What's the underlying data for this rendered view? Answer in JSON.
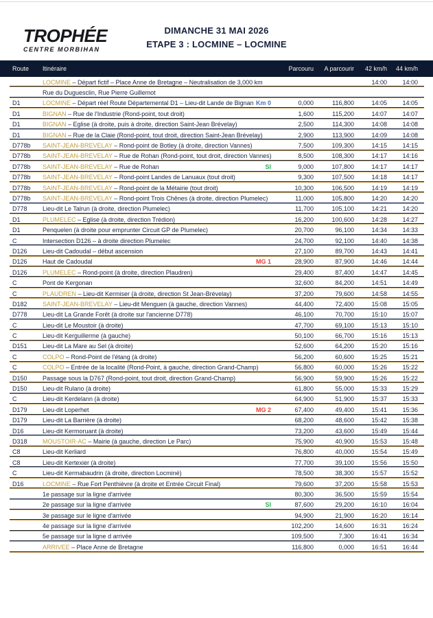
{
  "header": {
    "logo_title": "TROPHÉE",
    "logo_subtitle": "CENTRE MORBIHAN",
    "date_line": "DIMANCHE 31 MAI 2026",
    "stage_line": "ETAPE 3 : LOCMINE – LOCMINE"
  },
  "colors": {
    "header_bar_navy": "#0d1930",
    "text_navy": "#1a2440",
    "place_gold": "#bf9d3f",
    "separator_gold": "#d3ac63",
    "marker_km0_blue": "#4c74b5",
    "marker_si_green": "#2fb455",
    "marker_mg_red": "#f2392e"
  },
  "table": {
    "columns": [
      "Route",
      "Itinéraire",
      "Parcouru",
      "A parcourir",
      "42 km/h",
      "44 km/h"
    ],
    "rows": [
      {
        "route": "",
        "place": "LOCMINE",
        "text": " – Départ fictif – Place Anne de Bretagne – Neutralisation de 3,000 km",
        "marker": "",
        "marker_type": "",
        "parcouru": "",
        "a_parcourir": "",
        "t42": "14:00",
        "t44": "14:00"
      },
      {
        "route": "",
        "place": "",
        "text": "Rue du Duguesclin, Rue Pierre Guillemot",
        "marker": "",
        "marker_type": "",
        "parcouru": "",
        "a_parcourir": "",
        "t42": "",
        "t44": ""
      },
      {
        "route": "D1",
        "place": "LOCMINE",
        "text": " – Départ réel Route Départemental D1 – Lieu-dit Lande de Bignan",
        "marker": "Km 0",
        "marker_type": "km0",
        "parcouru": "0,000",
        "a_parcourir": "116,800",
        "t42": "14:05",
        "t44": "14:05"
      },
      {
        "route": "D1",
        "place": "BIGNAN",
        "text": " – Rue de l'Industrie (Rond-point, tout droit)",
        "marker": "",
        "marker_type": "",
        "parcouru": "1,600",
        "a_parcourir": "115,200",
        "t42": "14:07",
        "t44": "14:07"
      },
      {
        "route": "D1",
        "place": "BIGNAN",
        "text": " – Eglise (à droite, puis à droite, direction Saint-Jean Brévelay)",
        "marker": "",
        "marker_type": "",
        "parcouru": "2,500",
        "a_parcourir": "114,300",
        "t42": "14:08",
        "t44": "14:08"
      },
      {
        "route": "D1",
        "place": "BIGNAN",
        "text": " – Rue de la Claie (Rond-point, tout droit, direction Saint-Jean Brévelay)",
        "marker": "",
        "marker_type": "",
        "parcouru": "2,900",
        "a_parcourir": "113,900",
        "t42": "14:09",
        "t44": "14:08"
      },
      {
        "route": "D778b",
        "place": "SAINT-JEAN-BREVELAY",
        "text": " – Rond-point de Botley (à droite, direction Vannes)",
        "marker": "",
        "marker_type": "",
        "parcouru": "7,500",
        "a_parcourir": "109,300",
        "t42": "14:15",
        "t44": "14:15"
      },
      {
        "route": "D778b",
        "place": "SAINT-JEAN-BREVELAY",
        "text": " – Rue de Rohan (Rond-point, tout droit, direction Vannes)",
        "marker": "",
        "marker_type": "",
        "parcouru": "8,500",
        "a_parcourir": "108,300",
        "t42": "14:17",
        "t44": "14:16"
      },
      {
        "route": "D778b",
        "place": "SAINT-JEAN-BREVELAY",
        "text": " – Rue de Rohan",
        "marker": "SI",
        "marker_type": "si",
        "parcouru": "9,000",
        "a_parcourir": "107,800",
        "t42": "14:17",
        "t44": "14:17"
      },
      {
        "route": "D778b",
        "place": "SAINT-JEAN-BREVELAY",
        "text": " – Rond-point Landes de Lanuaux (tout droit)",
        "marker": "",
        "marker_type": "",
        "parcouru": "9,300",
        "a_parcourir": "107,500",
        "t42": "14:18",
        "t44": "14:17"
      },
      {
        "route": "D778b",
        "place": "SAINT-JEAN-BREVELAY",
        "text": " – Rond-point de la Métairie (tout droit)",
        "marker": "",
        "marker_type": "",
        "parcouru": "10,300",
        "a_parcourir": "106,500",
        "t42": "14:19",
        "t44": "14:19"
      },
      {
        "route": "D778b",
        "place": "SAINT-JEAN-BREVELAY",
        "text": " – Rond-point Trois Chênes (à droite, direction Plumelec)",
        "marker": "",
        "marker_type": "",
        "parcouru": "11,000",
        "a_parcourir": "105,800",
        "t42": "14:20",
        "t44": "14:20"
      },
      {
        "route": "D778",
        "place": "",
        "text": "Lieu-dit Le Talrun (à droite, direction Plumelec)",
        "marker": "",
        "marker_type": "",
        "parcouru": "11,700",
        "a_parcourir": "105,100",
        "t42": "14:21",
        "t44": "14:20"
      },
      {
        "route": "D1",
        "place": "PLUMELEC",
        "text": " – Eglise (à droite, direction Trédion)",
        "marker": "",
        "marker_type": "",
        "parcouru": "16,200",
        "a_parcourir": "100,600",
        "t42": "14:28",
        "t44": "14:27"
      },
      {
        "route": "D1",
        "place": "",
        "text": "Penquelen (à droite pour emprunter Circuit GP de Plumelec)",
        "marker": "",
        "marker_type": "",
        "parcouru": "20,700",
        "a_parcourir": "96,100",
        "t42": "14:34",
        "t44": "14:33"
      },
      {
        "route": "C",
        "place": "",
        "text": "Intersection D126 – à droite direction Plumelec",
        "marker": "",
        "marker_type": "",
        "parcouru": "24,700",
        "a_parcourir": "92,100",
        "t42": "14:40",
        "t44": "14:38"
      },
      {
        "route": "D126",
        "place": "",
        "text": "Lieu-dit Cadoudal – début ascension",
        "marker": "",
        "marker_type": "",
        "parcouru": "27,100",
        "a_parcourir": "89,700",
        "t42": "14:43",
        "t44": "14:41"
      },
      {
        "route": "D126",
        "place": "",
        "text": "Haut de Cadoudal",
        "marker": "MG 1",
        "marker_type": "mg",
        "parcouru": "28,900",
        "a_parcourir": "87,900",
        "t42": "14:46",
        "t44": "14:44"
      },
      {
        "route": "D126",
        "place": "PLUMELEC",
        "text": " – Rond-point (à droite, direction Plaudren)",
        "marker": "",
        "marker_type": "",
        "parcouru": "29,400",
        "a_parcourir": "87,400",
        "t42": "14:47",
        "t44": "14:45"
      },
      {
        "route": "C",
        "place": "",
        "text": "Pont de Kergonan",
        "marker": "",
        "marker_type": "",
        "parcouru": "32,600",
        "a_parcourir": "84,200",
        "t42": "14:51",
        "t44": "14:49"
      },
      {
        "route": "C",
        "place": "PLAUDREN",
        "text": " – Lieu-dit Kermiser (à droite, direction St Jean-Brévelay)",
        "marker": "",
        "marker_type": "",
        "parcouru": "37,200",
        "a_parcourir": "79,600",
        "t42": "14:58",
        "t44": "14:55"
      },
      {
        "route": "D182",
        "place": "SAINT-JEAN-BREVELAY",
        "text": " – Lieu-dit Menguen (à gauche, direction Vannes)",
        "marker": "",
        "marker_type": "",
        "parcouru": "44,400",
        "a_parcourir": "72,400",
        "t42": "15:08",
        "t44": "15:05"
      },
      {
        "route": "D778",
        "place": "",
        "text": "Lieu-dit La Grande Forêt (à droite sur l'ancienne D778)",
        "marker": "",
        "marker_type": "",
        "parcouru": "46,100",
        "a_parcourir": "70,700",
        "t42": "15:10",
        "t44": "15:07"
      },
      {
        "route": "C",
        "place": "",
        "text": "Lieu-dit Le Moustoir (à droite)",
        "marker": "",
        "marker_type": "",
        "parcouru": "47,700",
        "a_parcourir": "69,100",
        "t42": "15:13",
        "t44": "15:10"
      },
      {
        "route": "C",
        "place": "",
        "text": "Lieu-dit Kerguillerme (à gauche)",
        "marker": "",
        "marker_type": "",
        "parcouru": "50,100",
        "a_parcourir": "66,700",
        "t42": "15:16",
        "t44": "15:13"
      },
      {
        "route": "D151",
        "place": "",
        "text": "Lieu-dit La Mare au Sel (à droite)",
        "marker": "",
        "marker_type": "",
        "parcouru": "52,600",
        "a_parcourir": "64,200",
        "t42": "15:20",
        "t44": "15:16"
      },
      {
        "route": "C",
        "place": "COLPO",
        "text": " – Rond-Point de l'étang (à droite)",
        "marker": "",
        "marker_type": "",
        "parcouru": "56,200",
        "a_parcourir": "60,600",
        "t42": "15:25",
        "t44": "15:21"
      },
      {
        "route": "C",
        "place": "COLPO",
        "text": " – Entrée de la localité (Rond-Point, à gauche, direction Grand-Champ)",
        "marker": "",
        "marker_type": "",
        "parcouru": "56,800",
        "a_parcourir": "60,000",
        "t42": "15:26",
        "t44": "15:22"
      },
      {
        "route": "D150",
        "place": "",
        "text": "Passage sous la D767 (Rond-point, tout droit, direction Grand-Champ)",
        "marker": "",
        "marker_type": "",
        "parcouru": "56,900",
        "a_parcourir": "59,900",
        "t42": "15:26",
        "t44": "15:22"
      },
      {
        "route": "D150",
        "place": "",
        "text": "Lieu-dit Rulano (à droite)",
        "marker": "",
        "marker_type": "",
        "parcouru": "61,800",
        "a_parcourir": "55,000",
        "t42": "15:33",
        "t44": "15:29"
      },
      {
        "route": "C",
        "place": "",
        "text": "Lieu-dit Kerdelann (à droite)",
        "marker": "",
        "marker_type": "",
        "parcouru": "64,900",
        "a_parcourir": "51,900",
        "t42": "15:37",
        "t44": "15:33"
      },
      {
        "route": "D179",
        "place": "",
        "text": "Lieu-dit Loperhet",
        "marker": "MG 2",
        "marker_type": "mg",
        "parcouru": "67,400",
        "a_parcourir": "49,400",
        "t42": "15:41",
        "t44": "15:36"
      },
      {
        "route": "D179",
        "place": "",
        "text": "Lieu-dit La Barrière (à droite)",
        "marker": "",
        "marker_type": "",
        "parcouru": "68,200",
        "a_parcourir": "48,600",
        "t42": "15:42",
        "t44": "15:38"
      },
      {
        "route": "D16",
        "place": "",
        "text": "Lieu-dit Kermoruant (à droite)",
        "marker": "",
        "marker_type": "",
        "parcouru": "73,200",
        "a_parcourir": "43,600",
        "t42": "15:49",
        "t44": "15:44"
      },
      {
        "route": "D318",
        "place": "MOUSTOIR-AC",
        "text": " – Mairie (à gauche, direction Le Parc)",
        "marker": "",
        "marker_type": "",
        "parcouru": "75,900",
        "a_parcourir": "40,900",
        "t42": "15:53",
        "t44": "15:48"
      },
      {
        "route": "C8",
        "place": "",
        "text": "Lieu-dit Kerliard",
        "marker": "",
        "marker_type": "",
        "parcouru": "76,800",
        "a_parcourir": "40,000",
        "t42": "15:54",
        "t44": "15:49"
      },
      {
        "route": "C8",
        "place": "",
        "text": "Lieu-dit Kertexier (à droite)",
        "marker": "",
        "marker_type": "",
        "parcouru": "77,700",
        "a_parcourir": "39,100",
        "t42": "15:56",
        "t44": "15:50"
      },
      {
        "route": "C",
        "place": "",
        "text": "Lieu-dit Kermabaudrin (à droite, direction Locminé)",
        "marker": "",
        "marker_type": "",
        "parcouru": "78,500",
        "a_parcourir": "38,300",
        "t42": "15:57",
        "t44": "15:52"
      },
      {
        "route": "D16",
        "place": "LOCMINE",
        "text": " – Rue Fort Penthièvre (à droite et Entrée Circuit Final)",
        "marker": "",
        "marker_type": "",
        "parcouru": "79,600",
        "a_parcourir": "37,200",
        "t42": "15:58",
        "t44": "15:53"
      },
      {
        "route": "",
        "place": "",
        "text": "1e passage sur la ligne d'arrivée",
        "marker": "",
        "marker_type": "",
        "parcouru": "80,300",
        "a_parcourir": "36,500",
        "t42": "15:59",
        "t44": "15:54"
      },
      {
        "route": "",
        "place": "",
        "text": "2e passage sur la ligne d'arrivée",
        "marker": "SI",
        "marker_type": "si",
        "parcouru": "87,600",
        "a_parcourir": "29,200",
        "t42": "16:10",
        "t44": "16:04"
      },
      {
        "route": "",
        "place": "",
        "text": "3e passage sur le ligne d'arrivée",
        "marker": "",
        "marker_type": "",
        "parcouru": "94,900",
        "a_parcourir": "21,900",
        "t42": "16:20",
        "t44": "16:14"
      },
      {
        "route": "",
        "place": "",
        "text": "4e passage sur la ligne d'arrivée",
        "marker": "",
        "marker_type": "",
        "parcouru": "102,200",
        "a_parcourir": "14,600",
        "t42": "16:31",
        "t44": "16:24"
      },
      {
        "route": "",
        "place": "",
        "text": "5e passage sur la ligne d arrivée",
        "marker": "",
        "marker_type": "",
        "parcouru": "109,500",
        "a_parcourir": "7,300",
        "t42": "16:41",
        "t44": "16:34"
      },
      {
        "route": "",
        "place": "ARRIVEE",
        "text": " – Place Anne de Bretagne",
        "marker": "",
        "marker_type": "",
        "parcouru": "116,800",
        "a_parcourir": "0,000",
        "t42": "16:51",
        "t44": "16:44"
      }
    ]
  }
}
